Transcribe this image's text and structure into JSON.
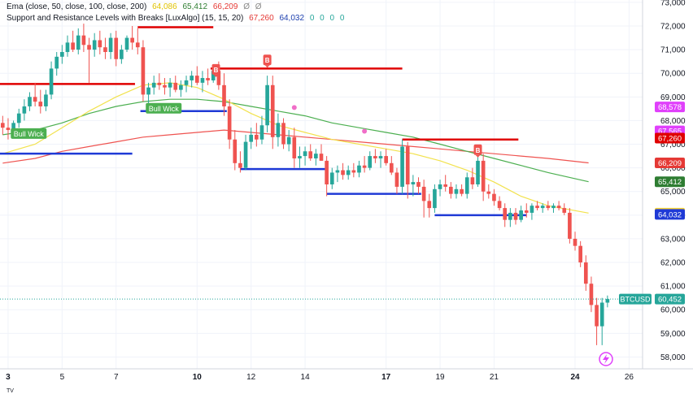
{
  "legend": {
    "ema": {
      "label": "Ema (close, 50, close, 100, close, 200)",
      "v1": "64,086",
      "v2": "65,412",
      "v3": "66,209",
      "v4": "Ø",
      "v5": "Ø"
    },
    "sr": {
      "label": "Support and Resistance Levels with Breaks [LuxAlgo] (15, 15, 20)",
      "v1": "67,260",
      "v2": "64,032",
      "v3": "0",
      "v4": "0",
      "v5": "0",
      "v6": "0"
    }
  },
  "footer": {
    "logo_text": "TV"
  },
  "colors": {
    "up": "#26a69a",
    "down": "#ef5350",
    "ema50": "#f2e24d",
    "ema100": "#4caf50",
    "ema200": "#ef5350",
    "resistance": "#e00000",
    "support": "#1f3ad6",
    "grid": "#f0f3fa"
  },
  "chart_data": {
    "type": "candlestick",
    "symbol": "BTCUSD",
    "ylim": [
      57500,
      73100
    ],
    "xlim": [
      2.7,
      26.5
    ],
    "y_ticks": [
      58000,
      59000,
      60000,
      61000,
      62000,
      63000,
      64000,
      65000,
      66000,
      67000,
      68000,
      69000,
      70000,
      71000,
      72000,
      73000
    ],
    "y_tick_labels": [
      "58,000",
      "59,000",
      "60,000",
      "61,000",
      "62,000",
      "63,000",
      "64,000",
      "65,000",
      "66,000",
      "67,000",
      "68,000",
      "69,000",
      "70,000",
      "71,000",
      "72,000",
      "73,000"
    ],
    "x_ticks": [
      3,
      5,
      7,
      10,
      12,
      14,
      17,
      19,
      21,
      24,
      26
    ],
    "x_tick_labels": [
      "3",
      "5",
      "7",
      "10",
      "12",
      "14",
      "17",
      "19",
      "21",
      "24",
      "26"
    ],
    "x_bold": [
      "3",
      "10",
      "17",
      "24"
    ],
    "candles": [
      {
        "t": 2.8,
        "o": 67900,
        "h": 68200,
        "l": 67400,
        "c": 67700
      },
      {
        "t": 3.0,
        "o": 67700,
        "h": 68100,
        "l": 67200,
        "c": 67600
      },
      {
        "t": 3.2,
        "o": 67600,
        "h": 68000,
        "l": 67300,
        "c": 67900
      },
      {
        "t": 3.4,
        "o": 67900,
        "h": 68500,
        "l": 67700,
        "c": 68300
      },
      {
        "t": 3.6,
        "o": 68300,
        "h": 68900,
        "l": 68000,
        "c": 68600
      },
      {
        "t": 3.8,
        "o": 68600,
        "h": 69200,
        "l": 68400,
        "c": 69000
      },
      {
        "t": 4.0,
        "o": 69000,
        "h": 69600,
        "l": 68600,
        "c": 68800
      },
      {
        "t": 4.2,
        "o": 68800,
        "h": 69300,
        "l": 68300,
        "c": 68600
      },
      {
        "t": 4.4,
        "o": 68600,
        "h": 69300,
        "l": 68400,
        "c": 69100
      },
      {
        "t": 4.6,
        "o": 69100,
        "h": 70500,
        "l": 68900,
        "c": 70200
      },
      {
        "t": 4.8,
        "o": 70200,
        "h": 70900,
        "l": 69900,
        "c": 70700
      },
      {
        "t": 5.0,
        "o": 70700,
        "h": 71200,
        "l": 70400,
        "c": 70900
      },
      {
        "t": 5.2,
        "o": 70900,
        "h": 71600,
        "l": 70700,
        "c": 71300
      },
      {
        "t": 5.4,
        "o": 71300,
        "h": 71800,
        "l": 70900,
        "c": 71000
      },
      {
        "t": 5.6,
        "o": 71000,
        "h": 71900,
        "l": 70800,
        "c": 71600
      },
      {
        "t": 5.8,
        "o": 71600,
        "h": 72100,
        "l": 70900,
        "c": 71200
      },
      {
        "t": 6.0,
        "o": 71200,
        "h": 71500,
        "l": 69600,
        "c": 71000
      },
      {
        "t": 6.2,
        "o": 71000,
        "h": 71700,
        "l": 70700,
        "c": 71400
      },
      {
        "t": 6.4,
        "o": 71400,
        "h": 71800,
        "l": 70800,
        "c": 71100
      },
      {
        "t": 6.6,
        "o": 71100,
        "h": 71500,
        "l": 70600,
        "c": 70900
      },
      {
        "t": 6.8,
        "o": 70900,
        "h": 71700,
        "l": 70600,
        "c": 71500
      },
      {
        "t": 7.0,
        "o": 71500,
        "h": 71800,
        "l": 70300,
        "c": 70600
      },
      {
        "t": 7.2,
        "o": 70600,
        "h": 71200,
        "l": 70400,
        "c": 71000
      },
      {
        "t": 7.4,
        "o": 71000,
        "h": 71600,
        "l": 70900,
        "c": 71500
      },
      {
        "t": 7.6,
        "o": 71500,
        "h": 72000,
        "l": 71000,
        "c": 71300
      },
      {
        "t": 7.8,
        "o": 71300,
        "h": 71900,
        "l": 70800,
        "c": 71100
      },
      {
        "t": 8.0,
        "o": 71100,
        "h": 71400,
        "l": 68800,
        "c": 69100
      },
      {
        "t": 8.2,
        "o": 69100,
        "h": 69600,
        "l": 68700,
        "c": 69400
      },
      {
        "t": 8.4,
        "o": 69400,
        "h": 69900,
        "l": 69100,
        "c": 69600
      },
      {
        "t": 8.6,
        "o": 69600,
        "h": 70000,
        "l": 69300,
        "c": 69500
      },
      {
        "t": 8.8,
        "o": 69500,
        "h": 69800,
        "l": 69100,
        "c": 69400
      },
      {
        "t": 9.0,
        "o": 69400,
        "h": 69800,
        "l": 69000,
        "c": 69600
      },
      {
        "t": 9.2,
        "o": 69600,
        "h": 69900,
        "l": 69200,
        "c": 69300
      },
      {
        "t": 9.4,
        "o": 69300,
        "h": 69700,
        "l": 69000,
        "c": 69500
      },
      {
        "t": 9.6,
        "o": 69500,
        "h": 69900,
        "l": 69200,
        "c": 69700
      },
      {
        "t": 9.8,
        "o": 69700,
        "h": 70100,
        "l": 69400,
        "c": 69900
      },
      {
        "t": 10.0,
        "o": 69900,
        "h": 70300,
        "l": 69500,
        "c": 69600
      },
      {
        "t": 10.2,
        "o": 69600,
        "h": 70100,
        "l": 69200,
        "c": 69800
      },
      {
        "t": 10.4,
        "o": 69800,
        "h": 70200,
        "l": 69500,
        "c": 69700
      },
      {
        "t": 10.6,
        "o": 69700,
        "h": 70300,
        "l": 69600,
        "c": 70100
      },
      {
        "t": 10.8,
        "o": 70100,
        "h": 70500,
        "l": 69300,
        "c": 69500
      },
      {
        "t": 11.0,
        "o": 69500,
        "h": 70000,
        "l": 68200,
        "c": 68600
      },
      {
        "t": 11.2,
        "o": 68600,
        "h": 68900,
        "l": 66800,
        "c": 67200
      },
      {
        "t": 11.4,
        "o": 67200,
        "h": 67600,
        "l": 65900,
        "c": 66200
      },
      {
        "t": 11.6,
        "o": 66200,
        "h": 66700,
        "l": 65800,
        "c": 66000
      },
      {
        "t": 11.8,
        "o": 66000,
        "h": 67400,
        "l": 65900,
        "c": 67100
      },
      {
        "t": 12.0,
        "o": 67100,
        "h": 67700,
        "l": 66800,
        "c": 67400
      },
      {
        "t": 12.2,
        "o": 67400,
        "h": 67900,
        "l": 66900,
        "c": 67200
      },
      {
        "t": 12.4,
        "o": 67200,
        "h": 68200,
        "l": 67000,
        "c": 67800
      },
      {
        "t": 12.6,
        "o": 67800,
        "h": 69900,
        "l": 67500,
        "c": 69500
      },
      {
        "t": 12.8,
        "o": 69500,
        "h": 69900,
        "l": 66800,
        "c": 67300
      },
      {
        "t": 13.0,
        "o": 67300,
        "h": 68300,
        "l": 66900,
        "c": 67900
      },
      {
        "t": 13.2,
        "o": 67900,
        "h": 68100,
        "l": 66800,
        "c": 67000
      },
      {
        "t": 13.4,
        "o": 67000,
        "h": 67600,
        "l": 66700,
        "c": 67300
      },
      {
        "t": 13.6,
        "o": 67300,
        "h": 67700,
        "l": 66000,
        "c": 66400
      },
      {
        "t": 13.8,
        "o": 66400,
        "h": 66900,
        "l": 66000,
        "c": 66500
      },
      {
        "t": 14.0,
        "o": 66500,
        "h": 66900,
        "l": 66100,
        "c": 66700
      },
      {
        "t": 14.2,
        "o": 66700,
        "h": 67000,
        "l": 66300,
        "c": 66400
      },
      {
        "t": 14.4,
        "o": 66400,
        "h": 66800,
        "l": 66100,
        "c": 66600
      },
      {
        "t": 14.6,
        "o": 66600,
        "h": 67000,
        "l": 66300,
        "c": 66300
      },
      {
        "t": 14.8,
        "o": 66300,
        "h": 66500,
        "l": 64800,
        "c": 65300
      },
      {
        "t": 15.0,
        "o": 65300,
        "h": 66000,
        "l": 65100,
        "c": 65800
      },
      {
        "t": 15.2,
        "o": 65800,
        "h": 66100,
        "l": 65400,
        "c": 65900
      },
      {
        "t": 15.4,
        "o": 65900,
        "h": 66200,
        "l": 65500,
        "c": 65700
      },
      {
        "t": 15.6,
        "o": 65700,
        "h": 66100,
        "l": 65500,
        "c": 65900
      },
      {
        "t": 15.8,
        "o": 65900,
        "h": 66200,
        "l": 65600,
        "c": 65800
      },
      {
        "t": 16.0,
        "o": 65800,
        "h": 66300,
        "l": 65600,
        "c": 66100
      },
      {
        "t": 16.2,
        "o": 66100,
        "h": 66500,
        "l": 65800,
        "c": 66000
      },
      {
        "t": 16.4,
        "o": 66000,
        "h": 66700,
        "l": 65900,
        "c": 66500
      },
      {
        "t": 16.6,
        "o": 66500,
        "h": 66800,
        "l": 66200,
        "c": 66400
      },
      {
        "t": 16.8,
        "o": 66400,
        "h": 66700,
        "l": 66000,
        "c": 66500
      },
      {
        "t": 17.0,
        "o": 66500,
        "h": 66800,
        "l": 66100,
        "c": 66200
      },
      {
        "t": 17.2,
        "o": 66200,
        "h": 66500,
        "l": 65700,
        "c": 65800
      },
      {
        "t": 17.4,
        "o": 65800,
        "h": 66000,
        "l": 64900,
        "c": 65200
      },
      {
        "t": 17.6,
        "o": 65200,
        "h": 67200,
        "l": 64900,
        "c": 66900
      },
      {
        "t": 17.8,
        "o": 66900,
        "h": 67100,
        "l": 64700,
        "c": 65300
      },
      {
        "t": 18.0,
        "o": 65300,
        "h": 65700,
        "l": 64800,
        "c": 65400
      },
      {
        "t": 18.2,
        "o": 65400,
        "h": 65600,
        "l": 64900,
        "c": 65200
      },
      {
        "t": 18.4,
        "o": 65200,
        "h": 65500,
        "l": 63900,
        "c": 64600
      },
      {
        "t": 18.6,
        "o": 64600,
        "h": 64900,
        "l": 63900,
        "c": 64300
      },
      {
        "t": 18.8,
        "o": 64300,
        "h": 65300,
        "l": 64100,
        "c": 65100
      },
      {
        "t": 19.0,
        "o": 65100,
        "h": 65500,
        "l": 64800,
        "c": 65300
      },
      {
        "t": 19.2,
        "o": 65300,
        "h": 65700,
        "l": 65000,
        "c": 65200
      },
      {
        "t": 19.4,
        "o": 65200,
        "h": 65400,
        "l": 64700,
        "c": 64900
      },
      {
        "t": 19.6,
        "o": 64900,
        "h": 65300,
        "l": 64700,
        "c": 65100
      },
      {
        "t": 19.8,
        "o": 65100,
        "h": 65300,
        "l": 64800,
        "c": 64900
      },
      {
        "t": 20.0,
        "o": 64900,
        "h": 65800,
        "l": 64700,
        "c": 65600
      },
      {
        "t": 20.2,
        "o": 65600,
        "h": 66000,
        "l": 65100,
        "c": 65300
      },
      {
        "t": 20.4,
        "o": 65300,
        "h": 66500,
        "l": 65200,
        "c": 66300
      },
      {
        "t": 20.6,
        "o": 66300,
        "h": 66600,
        "l": 64600,
        "c": 65000
      },
      {
        "t": 20.8,
        "o": 65000,
        "h": 65300,
        "l": 64700,
        "c": 64900
      },
      {
        "t": 21.0,
        "o": 64900,
        "h": 65100,
        "l": 64400,
        "c": 64600
      },
      {
        "t": 21.2,
        "o": 64600,
        "h": 64800,
        "l": 64200,
        "c": 64300
      },
      {
        "t": 21.4,
        "o": 64300,
        "h": 64500,
        "l": 63500,
        "c": 63800
      },
      {
        "t": 21.6,
        "o": 63800,
        "h": 64300,
        "l": 63500,
        "c": 64100
      },
      {
        "t": 21.8,
        "o": 64100,
        "h": 64300,
        "l": 63600,
        "c": 63800
      },
      {
        "t": 22.0,
        "o": 63800,
        "h": 64400,
        "l": 63700,
        "c": 64200
      },
      {
        "t": 22.2,
        "o": 64200,
        "h": 64500,
        "l": 63900,
        "c": 64100
      },
      {
        "t": 22.4,
        "o": 64100,
        "h": 64500,
        "l": 63800,
        "c": 64400
      },
      {
        "t": 22.6,
        "o": 64400,
        "h": 64600,
        "l": 64200,
        "c": 64300
      },
      {
        "t": 22.8,
        "o": 64300,
        "h": 64500,
        "l": 64100,
        "c": 64400
      },
      {
        "t": 23.0,
        "o": 64400,
        "h": 64600,
        "l": 64200,
        "c": 64300
      },
      {
        "t": 23.2,
        "o": 64300,
        "h": 64500,
        "l": 64100,
        "c": 64400
      },
      {
        "t": 23.4,
        "o": 64400,
        "h": 64600,
        "l": 64200,
        "c": 64300
      },
      {
        "t": 23.6,
        "o": 64300,
        "h": 64500,
        "l": 64000,
        "c": 64100
      },
      {
        "t": 23.8,
        "o": 64100,
        "h": 64300,
        "l": 62800,
        "c": 63000
      },
      {
        "t": 24.0,
        "o": 63000,
        "h": 63300,
        "l": 62500,
        "c": 62700
      },
      {
        "t": 24.2,
        "o": 62700,
        "h": 62900,
        "l": 61800,
        "c": 62000
      },
      {
        "t": 24.4,
        "o": 62000,
        "h": 62300,
        "l": 60800,
        "c": 61100
      },
      {
        "t": 24.6,
        "o": 61100,
        "h": 61400,
        "l": 59900,
        "c": 60200
      },
      {
        "t": 24.8,
        "o": 60200,
        "h": 60500,
        "l": 58500,
        "c": 59300
      },
      {
        "t": 25.0,
        "o": 59300,
        "h": 60500,
        "l": 58500,
        "c": 60300
      },
      {
        "t": 25.2,
        "o": 60300,
        "h": 60600,
        "l": 60100,
        "c": 60452
      }
    ],
    "ema50": [
      [
        2.8,
        66600
      ],
      [
        4,
        67000
      ],
      [
        5,
        67700
      ],
      [
        6,
        68400
      ],
      [
        7,
        69000
      ],
      [
        8,
        69500
      ],
      [
        9,
        69600
      ],
      [
        10,
        69400
      ],
      [
        11,
        68900
      ],
      [
        12,
        68300
      ],
      [
        13,
        67800
      ],
      [
        14,
        67500
      ],
      [
        15,
        67200
      ],
      [
        16,
        67000
      ],
      [
        17,
        66800
      ],
      [
        18,
        66600
      ],
      [
        19,
        66300
      ],
      [
        20,
        65900
      ],
      [
        21,
        65400
      ],
      [
        22,
        64800
      ],
      [
        23,
        64400
      ],
      [
        24.5,
        64086
      ]
    ],
    "ema100": [
      [
        2.8,
        67400
      ],
      [
        4,
        67600
      ],
      [
        5,
        67900
      ],
      [
        6,
        68300
      ],
      [
        7,
        68600
      ],
      [
        8,
        68800
      ],
      [
        9,
        68900
      ],
      [
        10,
        68900
      ],
      [
        11,
        68800
      ],
      [
        12,
        68600
      ],
      [
        13,
        68400
      ],
      [
        14,
        68200
      ],
      [
        15,
        67900
      ],
      [
        16,
        67700
      ],
      [
        17,
        67500
      ],
      [
        18,
        67300
      ],
      [
        19,
        67000
      ],
      [
        20,
        66700
      ],
      [
        21,
        66400
      ],
      [
        22,
        66100
      ],
      [
        23,
        65800
      ],
      [
        24.5,
        65412
      ]
    ],
    "ema200": [
      [
        2.8,
        66200
      ],
      [
        4,
        66400
      ],
      [
        5,
        66700
      ],
      [
        6,
        66900
      ],
      [
        7,
        67100
      ],
      [
        8,
        67300
      ],
      [
        9,
        67400
      ],
      [
        10,
        67500
      ],
      [
        11,
        67600
      ],
      [
        12,
        67500
      ],
      [
        13,
        67400
      ],
      [
        14,
        67300
      ],
      [
        15,
        67200
      ],
      [
        16,
        67100
      ],
      [
        17,
        67000
      ],
      [
        18,
        66900
      ],
      [
        19,
        66800
      ],
      [
        20,
        66700
      ],
      [
        21,
        66600
      ],
      [
        22,
        66500
      ],
      [
        23,
        66400
      ],
      [
        24.5,
        66209
      ]
    ],
    "resistance_lines": [
      {
        "x1": 2.7,
        "x2": 7.7,
        "y": 69550
      },
      {
        "x1": 7.8,
        "x2": 10.6,
        "y": 71950
      },
      {
        "x1": 10.5,
        "x2": 17.6,
        "y": 70200
      },
      {
        "x1": 17.6,
        "x2": 21.9,
        "y": 67200
      }
    ],
    "support_lines": [
      {
        "x1": 2.7,
        "x2": 7.6,
        "y": 66600
      },
      {
        "x1": 7.9,
        "x2": 11.1,
        "y": 68400
      },
      {
        "x1": 11.6,
        "x2": 14.8,
        "y": 65950
      },
      {
        "x1": 14.8,
        "x2": 18.3,
        "y": 64900
      },
      {
        "x1": 18.8,
        "x2": 22.2,
        "y": 64000
      }
    ],
    "annotations": [
      {
        "kind": "label",
        "text": "Bull Wick",
        "x": 3.1,
        "y": 67450
      },
      {
        "kind": "label",
        "text": "Bull Wick",
        "x": 8.1,
        "y": 68520
      },
      {
        "kind": "break",
        "text": "B",
        "x": 10.7,
        "y": 70150
      },
      {
        "kind": "break",
        "text": "B",
        "x": 12.6,
        "y": 70550
      },
      {
        "kind": "break",
        "text": "B",
        "x": 20.4,
        "y": 66750
      }
    ],
    "cross_markers": [
      {
        "x": 13.6,
        "y": 68550
      },
      {
        "x": 16.2,
        "y": 67550
      }
    ],
    "price_tags": [
      {
        "value": 68578,
        "text": "68,578",
        "color": "#e040fb"
      },
      {
        "value": 67565,
        "text": "67,565",
        "color": "#e040fb"
      },
      {
        "value": 67260,
        "text": "67,260",
        "color": "#e00000"
      },
      {
        "value": 66209,
        "text": "66,209",
        "color": "#e53935"
      },
      {
        "value": 65412,
        "text": "65,412",
        "color": "#2e7d32"
      },
      {
        "value": 64086,
        "text": "64,086",
        "color": "#fdd835"
      },
      {
        "value": 64032,
        "text": "64,032",
        "color": "#1f3ad6"
      }
    ],
    "last_price": {
      "value": 60452,
      "text": "60,452",
      "symbol": "BTCUSD"
    }
  }
}
